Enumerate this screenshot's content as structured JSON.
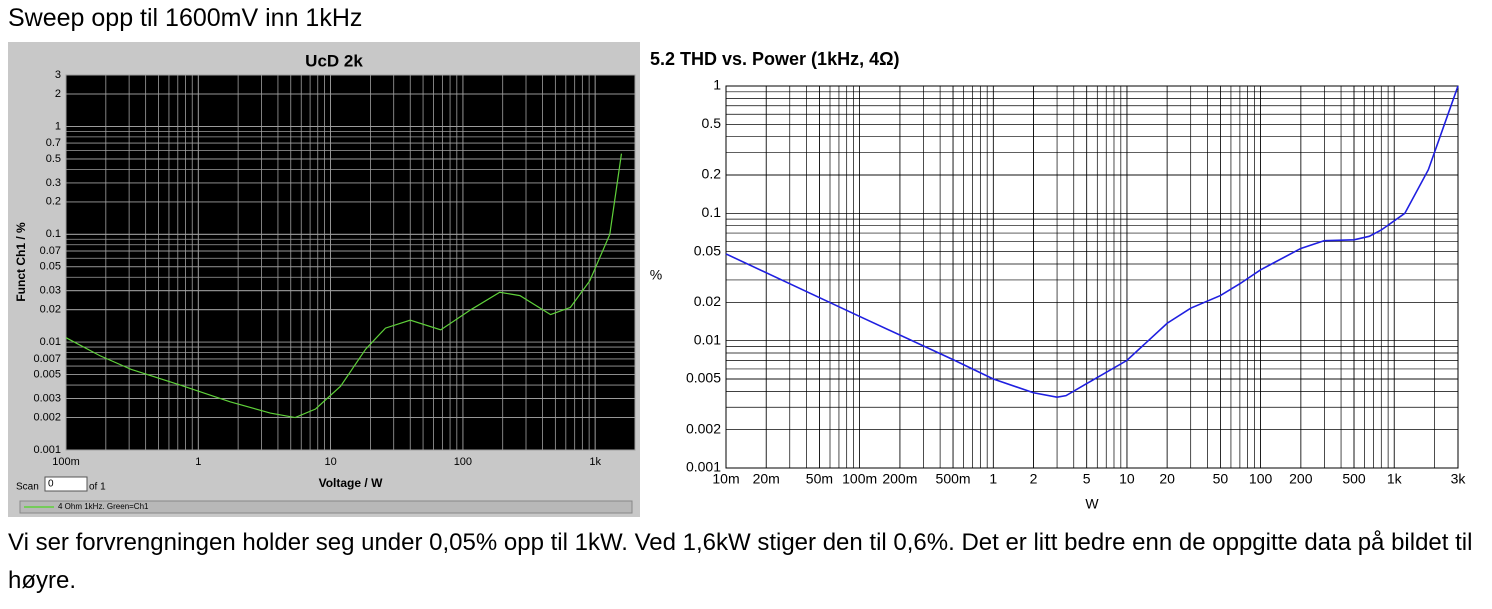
{
  "heading": "Sweep opp til 1600mV inn 1kHz",
  "controls": {
    "scan_label": "Scan",
    "scan_value": "0",
    "scan_of": "of 1"
  },
  "chart_data": [
    {
      "type": "line",
      "title": "UcD 2k",
      "y_label": "Funct Ch1 / %",
      "x_label": "Voltage / W",
      "log_x": true,
      "log_y": true,
      "grid": true,
      "minor_grid": true,
      "background": "#000000",
      "grid_color": "#a0a0a0",
      "xlim": [
        0.1,
        2000
      ],
      "ylim": [
        0.001,
        3
      ],
      "xticks": [
        {
          "value": 0.1,
          "label": "100m"
        },
        1,
        10,
        100,
        {
          "value": 1000,
          "label": "1k"
        }
      ],
      "yticks": [
        0.001,
        0.002,
        0.003,
        0.005,
        0.007,
        0.01,
        0.02,
        0.03,
        0.05,
        0.07,
        0.1,
        0.2,
        0.3,
        0.5,
        0.7,
        1,
        2,
        3
      ],
      "series": [
        {
          "name": "4 Ohm 1kHz. Green=Ch1",
          "color": "#5fd13a",
          "x": [
            0.1,
            0.18,
            0.31,
            0.73,
            1.74,
            3.5,
            5.4,
            7.7,
            11.9,
            18.4,
            26,
            40,
            68,
            115,
            190,
            270,
            460,
            650,
            910,
            1290,
            1580
          ],
          "values": [
            0.011,
            0.0075,
            0.0056,
            0.004,
            0.0028,
            0.0022,
            0.002,
            0.0024,
            0.0039,
            0.0086,
            0.0135,
            0.016,
            0.013,
            0.02,
            0.029,
            0.027,
            0.018,
            0.021,
            0.037,
            0.1,
            0.56
          ]
        }
      ]
    },
    {
      "type": "line",
      "title": "5.2  THD vs. Power (1kHz, 4Ω)",
      "y_label": "%",
      "x_label": "W",
      "log_x": true,
      "log_y": true,
      "grid": true,
      "minor_grid": true,
      "background": "#ffffff",
      "grid_color": "#000000",
      "xlim": [
        0.01,
        3000
      ],
      "ylim": [
        0.001,
        1
      ],
      "xticks": [
        {
          "value": 0.01,
          "label": "10m"
        },
        {
          "value": 0.02,
          "label": "20m"
        },
        {
          "value": 0.05,
          "label": "50m"
        },
        {
          "value": 0.1,
          "label": "100m"
        },
        {
          "value": 0.2,
          "label": "200m"
        },
        {
          "value": 0.5,
          "label": "500m"
        },
        1,
        2,
        5,
        10,
        20,
        50,
        100,
        200,
        500,
        {
          "value": 1000,
          "label": "1k"
        },
        {
          "value": 3000,
          "label": "3k"
        }
      ],
      "yticks": [
        0.001,
        0.002,
        0.005,
        0.01,
        0.02,
        0.05,
        0.1,
        0.2,
        0.5,
        1
      ],
      "series": [
        {
          "color": "#1f1fe0",
          "x": [
            0.01,
            0.1,
            0.5,
            1,
            2,
            3,
            3.5,
            5,
            10,
            20,
            30,
            50,
            70,
            100,
            200,
            300,
            500,
            650,
            800,
            1200,
            1800,
            3000
          ],
          "values": [
            0.048,
            0.0155,
            0.0071,
            0.005,
            0.0039,
            0.0036,
            0.0037,
            0.0046,
            0.007,
            0.0137,
            0.018,
            0.0226,
            0.028,
            0.036,
            0.053,
            0.061,
            0.062,
            0.066,
            0.074,
            0.1,
            0.22,
            1
          ]
        }
      ]
    }
  ],
  "body": "Vi ser forvrengningen holder seg under 0,05% opp til 1kW. Ved 1,6kW stiger den til 0,6%. Det er litt bedre enn de oppgitte data på bildet til høyre."
}
